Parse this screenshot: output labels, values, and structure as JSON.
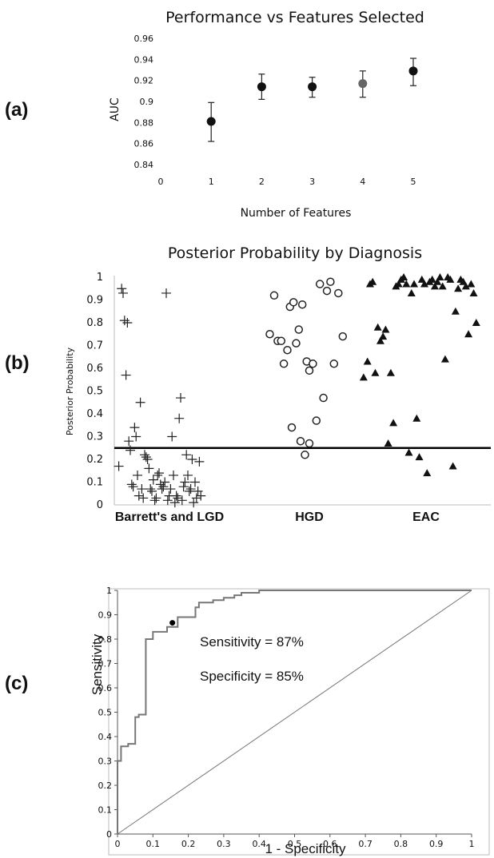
{
  "chart_data": [
    {
      "type": "scatter",
      "panel_label": "(a)",
      "title": "Performance vs Features Selected",
      "xlabel": "Number of Features",
      "ylabel": "AUC",
      "xlim": [
        0,
        5
      ],
      "ylim": [
        0.84,
        0.96
      ],
      "xticks": [
        "0",
        "1",
        "2",
        "3",
        "4",
        "5"
      ],
      "yticks": [
        "0.84",
        "0.86",
        "0.88",
        "0.9",
        "0.92",
        "0.94",
        "0.96"
      ],
      "grid": false,
      "points": [
        {
          "x": 1,
          "y": 0.881,
          "err_low": 0.862,
          "err_high": 0.899,
          "color": "#111111"
        },
        {
          "x": 2,
          "y": 0.914,
          "err_low": 0.902,
          "err_high": 0.926,
          "color": "#111111"
        },
        {
          "x": 3,
          "y": 0.914,
          "err_low": 0.904,
          "err_high": 0.923,
          "color": "#111111"
        },
        {
          "x": 4,
          "y": 0.917,
          "err_low": 0.904,
          "err_high": 0.929,
          "color": "#666666"
        },
        {
          "x": 5,
          "y": 0.929,
          "err_low": 0.915,
          "err_high": 0.941,
          "color": "#111111"
        }
      ]
    },
    {
      "type": "scatter",
      "panel_label": "(b)",
      "title": "Posterior Probability by Diagnosis",
      "ylabel": "Posterior Probability",
      "ylim": [
        0,
        1
      ],
      "yticks": [
        "0",
        "0.1",
        "0.2",
        "0.3",
        "0.4",
        "0.5",
        "0.6",
        "0.7",
        "0.8",
        "0.9",
        "1"
      ],
      "threshold": 0.25,
      "grid": false,
      "categories": [
        "Barrett's and LGD",
        "HGD",
        "EAC"
      ],
      "series": [
        {
          "category": "Barrett's and LGD",
          "marker": "plus",
          "points": [
            {
              "x": 0.02,
              "y": 0.17
            },
            {
              "x": 0.04,
              "y": 0.95
            },
            {
              "x": 0.05,
              "y": 0.93
            },
            {
              "x": 0.06,
              "y": 0.81
            },
            {
              "x": 0.07,
              "y": 0.57
            },
            {
              "x": 0.08,
              "y": 0.8
            },
            {
              "x": 0.09,
              "y": 0.28
            },
            {
              "x": 0.1,
              "y": 0.24
            },
            {
              "x": 0.11,
              "y": 0.09
            },
            {
              "x": 0.12,
              "y": 0.08
            },
            {
              "x": 0.13,
              "y": 0.34
            },
            {
              "x": 0.14,
              "y": 0.3
            },
            {
              "x": 0.15,
              "y": 0.13
            },
            {
              "x": 0.16,
              "y": 0.04
            },
            {
              "x": 0.17,
              "y": 0.45
            },
            {
              "x": 0.18,
              "y": 0.07
            },
            {
              "x": 0.19,
              "y": 0.03
            },
            {
              "x": 0.2,
              "y": 0.22
            },
            {
              "x": 0.21,
              "y": 0.21
            },
            {
              "x": 0.22,
              "y": 0.2
            },
            {
              "x": 0.23,
              "y": 0.16
            },
            {
              "x": 0.24,
              "y": 0.07
            },
            {
              "x": 0.25,
              "y": 0.06
            },
            {
              "x": 0.26,
              "y": 0.11
            },
            {
              "x": 0.27,
              "y": 0.02
            },
            {
              "x": 0.28,
              "y": 0.03
            },
            {
              "x": 0.29,
              "y": 0.13
            },
            {
              "x": 0.3,
              "y": 0.14
            },
            {
              "x": 0.31,
              "y": 0.09
            },
            {
              "x": 0.32,
              "y": 0.07
            },
            {
              "x": 0.33,
              "y": 0.08
            },
            {
              "x": 0.34,
              "y": 0.1
            },
            {
              "x": 0.35,
              "y": 0.93
            },
            {
              "x": 0.36,
              "y": 0.02
            },
            {
              "x": 0.37,
              "y": 0.04
            },
            {
              "x": 0.38,
              "y": 0.07
            },
            {
              "x": 0.39,
              "y": 0.3
            },
            {
              "x": 0.4,
              "y": 0.13
            },
            {
              "x": 0.41,
              "y": 0.01
            },
            {
              "x": 0.42,
              "y": 0.04
            },
            {
              "x": 0.43,
              "y": 0.03
            },
            {
              "x": 0.44,
              "y": 0.38
            },
            {
              "x": 0.45,
              "y": 0.47
            },
            {
              "x": 0.46,
              "y": 0.02
            },
            {
              "x": 0.47,
              "y": 0.08
            },
            {
              "x": 0.48,
              "y": 0.1
            },
            {
              "x": 0.49,
              "y": 0.22
            },
            {
              "x": 0.5,
              "y": 0.13
            },
            {
              "x": 0.51,
              "y": 0.06
            },
            {
              "x": 0.52,
              "y": 0.07
            },
            {
              "x": 0.53,
              "y": 0.2
            },
            {
              "x": 0.54,
              "y": 0.01
            },
            {
              "x": 0.55,
              "y": 0.1
            },
            {
              "x": 0.56,
              "y": 0.03
            },
            {
              "x": 0.57,
              "y": 0.06
            },
            {
              "x": 0.58,
              "y": 0.19
            },
            {
              "x": 0.59,
              "y": 0.04
            }
          ]
        },
        {
          "category": "HGD",
          "marker": "circle",
          "points": [
            {
              "x": 0.05,
              "y": 0.75
            },
            {
              "x": 0.1,
              "y": 0.92
            },
            {
              "x": 0.14,
              "y": 0.72
            },
            {
              "x": 0.18,
              "y": 0.72
            },
            {
              "x": 0.21,
              "y": 0.62
            },
            {
              "x": 0.25,
              "y": 0.68
            },
            {
              "x": 0.28,
              "y": 0.87
            },
            {
              "x": 0.32,
              "y": 0.89
            },
            {
              "x": 0.35,
              "y": 0.71
            },
            {
              "x": 0.38,
              "y": 0.77
            },
            {
              "x": 0.42,
              "y": 0.88
            },
            {
              "x": 0.47,
              "y": 0.63
            },
            {
              "x": 0.5,
              "y": 0.59
            },
            {
              "x": 0.54,
              "y": 0.62
            },
            {
              "x": 0.58,
              "y": 0.37
            },
            {
              "x": 0.62,
              "y": 0.97
            },
            {
              "x": 0.66,
              "y": 0.47
            },
            {
              "x": 0.7,
              "y": 0.94
            },
            {
              "x": 0.74,
              "y": 0.98
            },
            {
              "x": 0.78,
              "y": 0.62
            },
            {
              "x": 0.83,
              "y": 0.93
            },
            {
              "x": 0.88,
              "y": 0.74
            },
            {
              "x": 0.3,
              "y": 0.34
            },
            {
              "x": 0.4,
              "y": 0.28
            },
            {
              "x": 0.45,
              "y": 0.22
            },
            {
              "x": 0.5,
              "y": 0.27
            }
          ]
        },
        {
          "category": "EAC",
          "marker": "triangle",
          "points": [
            {
              "x": 0.03,
              "y": 0.56
            },
            {
              "x": 0.06,
              "y": 0.63
            },
            {
              "x": 0.08,
              "y": 0.97
            },
            {
              "x": 0.1,
              "y": 0.98
            },
            {
              "x": 0.12,
              "y": 0.58
            },
            {
              "x": 0.14,
              "y": 0.78
            },
            {
              "x": 0.16,
              "y": 0.72
            },
            {
              "x": 0.18,
              "y": 0.74
            },
            {
              "x": 0.2,
              "y": 0.77
            },
            {
              "x": 0.22,
              "y": 0.27
            },
            {
              "x": 0.24,
              "y": 0.58
            },
            {
              "x": 0.26,
              "y": 0.36
            },
            {
              "x": 0.28,
              "y": 0.96
            },
            {
              "x": 0.3,
              "y": 0.97
            },
            {
              "x": 0.32,
              "y": 0.99
            },
            {
              "x": 0.34,
              "y": 1.0
            },
            {
              "x": 0.36,
              "y": 0.97
            },
            {
              "x": 0.38,
              "y": 0.23
            },
            {
              "x": 0.4,
              "y": 0.93
            },
            {
              "x": 0.42,
              "y": 0.97
            },
            {
              "x": 0.44,
              "y": 0.38
            },
            {
              "x": 0.46,
              "y": 0.21
            },
            {
              "x": 0.48,
              "y": 0.99
            },
            {
              "x": 0.5,
              "y": 0.97
            },
            {
              "x": 0.52,
              "y": 0.14
            },
            {
              "x": 0.54,
              "y": 0.98
            },
            {
              "x": 0.56,
              "y": 0.99
            },
            {
              "x": 0.58,
              "y": 0.96
            },
            {
              "x": 0.6,
              "y": 0.98
            },
            {
              "x": 0.62,
              "y": 1.0
            },
            {
              "x": 0.64,
              "y": 0.96
            },
            {
              "x": 0.66,
              "y": 0.64
            },
            {
              "x": 0.68,
              "y": 1.0
            },
            {
              "x": 0.7,
              "y": 0.99
            },
            {
              "x": 0.72,
              "y": 0.17
            },
            {
              "x": 0.74,
              "y": 0.85
            },
            {
              "x": 0.76,
              "y": 0.95
            },
            {
              "x": 0.78,
              "y": 0.99
            },
            {
              "x": 0.8,
              "y": 0.98
            },
            {
              "x": 0.82,
              "y": 0.96
            },
            {
              "x": 0.84,
              "y": 0.75
            },
            {
              "x": 0.86,
              "y": 0.97
            },
            {
              "x": 0.88,
              "y": 0.93
            },
            {
              "x": 0.9,
              "y": 0.8
            }
          ]
        }
      ]
    },
    {
      "type": "line",
      "panel_label": "(c)",
      "xlabel": "1 - Specificity",
      "ylabel": "Sensitivity",
      "xlim": [
        0,
        1
      ],
      "ylim": [
        0,
        1
      ],
      "xticks": [
        "0",
        "0.1",
        "0.2",
        "0.3",
        "0.4",
        "0.5",
        "0.6",
        "0.7",
        "0.8",
        "0.9",
        "1"
      ],
      "yticks": [
        "0",
        "0.1",
        "0.2",
        "0.3",
        "0.4",
        "0.5",
        "0.6",
        "0.7",
        "0.8",
        "0.9",
        "1"
      ],
      "grid": false,
      "annotations": [
        "Sensitivity = 87%",
        "Specificity = 85%"
      ],
      "operating_point": {
        "x": 0.155,
        "y": 0.867
      },
      "series": [
        {
          "kind": "roc",
          "color": "#777777",
          "points": [
            [
              0,
              0
            ],
            [
              0,
              0.3
            ],
            [
              0.01,
              0.3
            ],
            [
              0.01,
              0.36
            ],
            [
              0.03,
              0.36
            ],
            [
              0.03,
              0.37
            ],
            [
              0.05,
              0.37
            ],
            [
              0.05,
              0.48
            ],
            [
              0.06,
              0.48
            ],
            [
              0.06,
              0.49
            ],
            [
              0.08,
              0.49
            ],
            [
              0.08,
              0.8
            ],
            [
              0.1,
              0.8
            ],
            [
              0.1,
              0.83
            ],
            [
              0.14,
              0.83
            ],
            [
              0.14,
              0.85
            ],
            [
              0.17,
              0.85
            ],
            [
              0.17,
              0.89
            ],
            [
              0.22,
              0.89
            ],
            [
              0.22,
              0.93
            ],
            [
              0.23,
              0.93
            ],
            [
              0.23,
              0.95
            ],
            [
              0.27,
              0.95
            ],
            [
              0.27,
              0.96
            ],
            [
              0.3,
              0.96
            ],
            [
              0.3,
              0.97
            ],
            [
              0.33,
              0.97
            ],
            [
              0.33,
              0.98
            ],
            [
              0.35,
              0.98
            ],
            [
              0.35,
              0.99
            ],
            [
              0.4,
              0.99
            ],
            [
              0.4,
              1.0
            ],
            [
              1.0,
              1.0
            ]
          ]
        },
        {
          "kind": "diagonal",
          "color": "#777777",
          "points": [
            [
              0,
              0
            ],
            [
              1,
              1
            ]
          ]
        }
      ]
    }
  ]
}
